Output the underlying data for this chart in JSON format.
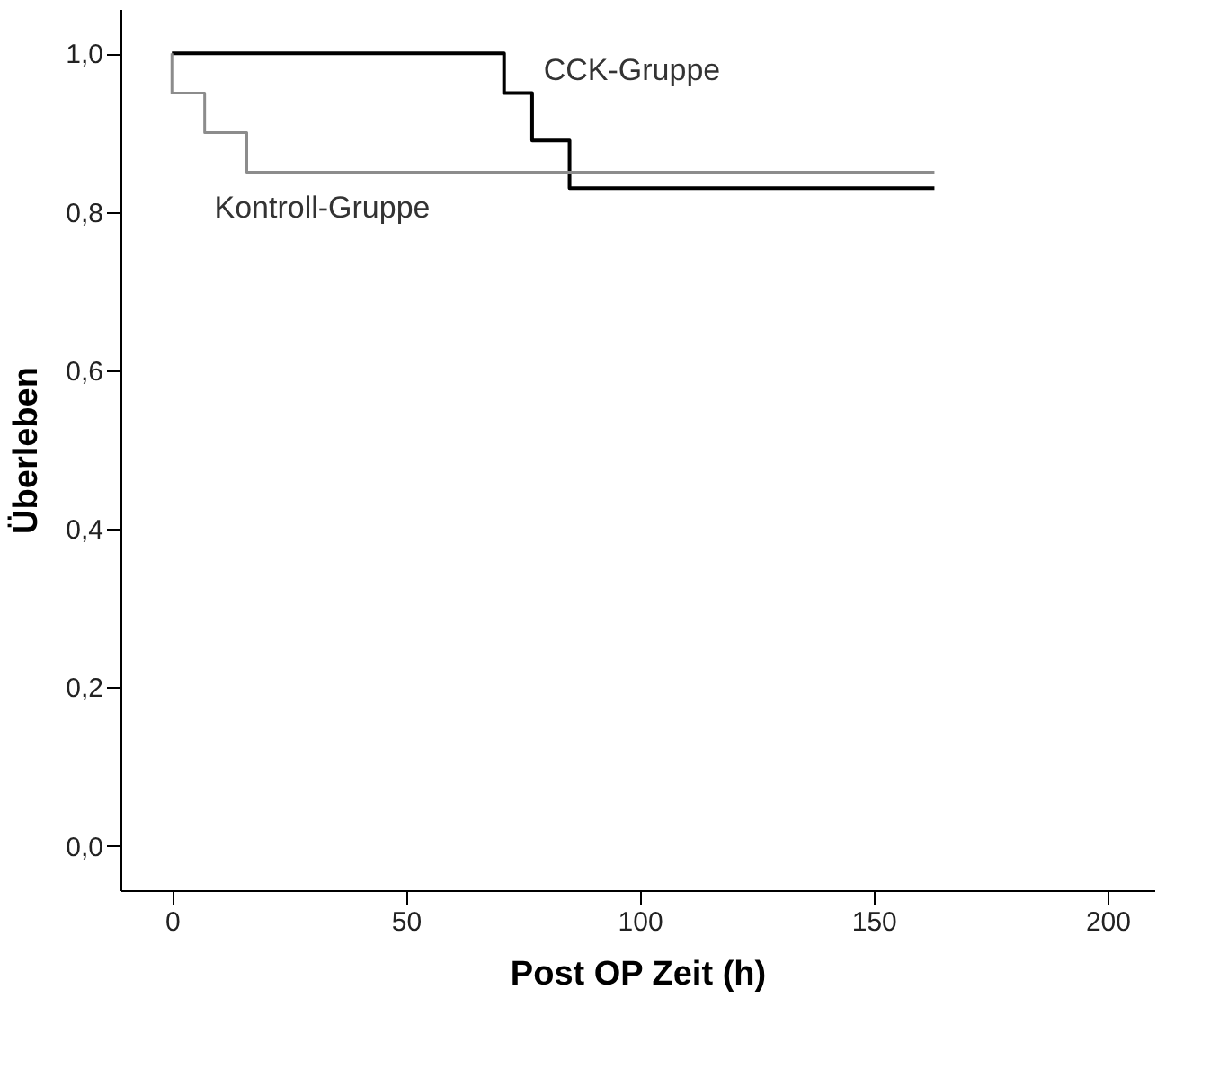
{
  "chart_data": {
    "type": "step",
    "xlabel": "Post OP Zeit (h)",
    "ylabel": "Überleben",
    "xlim": [
      -11,
      210
    ],
    "xticks": [
      0,
      50,
      100,
      150,
      200
    ],
    "ylim": [
      -0.056,
      1.056
    ],
    "yticks": [
      {
        "value": 0,
        "label": "0,0"
      },
      {
        "value": 0.2,
        "label": "0,2"
      },
      {
        "value": 0.4,
        "label": "0,4"
      },
      {
        "value": 0.6,
        "label": "0,6"
      },
      {
        "value": 0.8,
        "label": "0,8"
      },
      {
        "value": 1.0,
        "label": "1,0"
      }
    ],
    "grid": false,
    "series": [
      {
        "name": "CCK-Gruppe",
        "color": "#000000",
        "x": [
          0,
          71,
          77,
          85,
          163
        ],
        "values": [
          1.0,
          0.95,
          0.89,
          0.83,
          0.83
        ]
      },
      {
        "name": "Kontroll-Gruppe",
        "color": "#8c8c8c",
        "x": [
          0,
          0,
          7,
          16,
          163
        ],
        "values": [
          1.0,
          0.95,
          0.9,
          0.85,
          0.85
        ]
      }
    ]
  }
}
